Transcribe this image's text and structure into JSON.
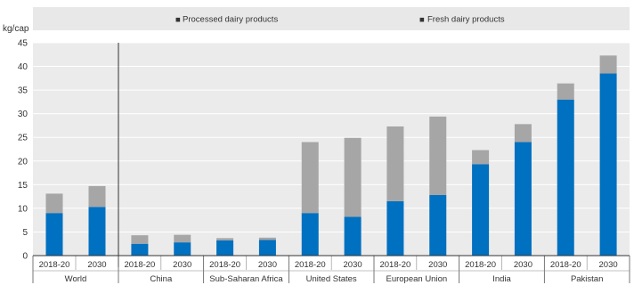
{
  "chart_data": {
    "type": "bar",
    "stacked": true,
    "y_unit_label": "kg/cap",
    "ylim": [
      0,
      45
    ],
    "yticks": [
      0,
      5,
      10,
      15,
      20,
      25,
      30,
      35,
      40,
      45
    ],
    "grid": true,
    "legend_position": "top",
    "groups": [
      {
        "name": "World",
        "periods": [
          "2018-20",
          "2030"
        ]
      },
      {
        "name": "China",
        "periods": [
          "2018-20",
          "2030"
        ]
      },
      {
        "name": "Sub-Saharan Africa",
        "periods": [
          "2018-20",
          "2030"
        ]
      },
      {
        "name": "United States",
        "periods": [
          "2018-20",
          "2030"
        ]
      },
      {
        "name": "European Union",
        "periods": [
          "2018-20",
          "2030"
        ]
      },
      {
        "name": "India",
        "periods": [
          "2018-20",
          "2030"
        ]
      },
      {
        "name": "Pakistan",
        "periods": [
          "2018-20",
          "2030"
        ]
      }
    ],
    "series": [
      {
        "name": "Fresh dairy products",
        "color": "#0070c0",
        "values": [
          9.0,
          10.3,
          2.5,
          2.8,
          3.2,
          3.3,
          9.0,
          8.2,
          11.5,
          12.8,
          19.3,
          24.0,
          33.0,
          38.5
        ]
      },
      {
        "name": "Processed dairy products",
        "color": "#a6a6a6",
        "values": [
          4.1,
          4.4,
          1.8,
          1.6,
          0.5,
          0.5,
          15.0,
          16.7,
          15.8,
          16.6,
          3.0,
          3.8,
          3.4,
          3.8
        ]
      }
    ],
    "legend": [
      {
        "marker": "■",
        "label": "Processed dairy products",
        "color": "#a6a6a6"
      },
      {
        "marker": "■",
        "label": "Fresh dairy products",
        "color": "#0070c0"
      }
    ]
  }
}
